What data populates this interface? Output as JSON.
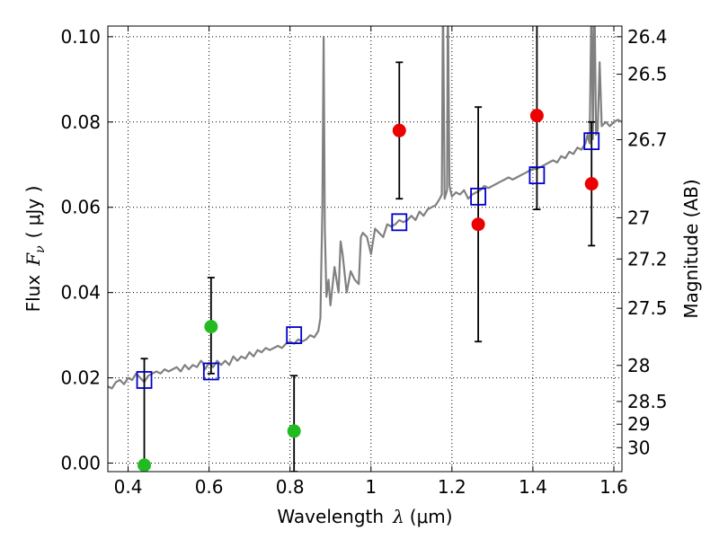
{
  "chart_data": {
    "type": "scatter",
    "xlabel_prefix": "Wavelength",
    "xlabel_symbol": "λ",
    "xlabel_unit": "(μm)",
    "ylabel_prefix": "Flux",
    "ylabel_symbol": "F",
    "ylabel_sub": "ν",
    "ylabel_unit": "( μJy )",
    "y2label": "Magnitude (AB)",
    "xlim": [
      0.35,
      1.62
    ],
    "ylim": [
      -0.002,
      0.1025
    ],
    "grid": true,
    "x_ticks": [
      "0.4",
      "0.6",
      "0.8",
      "1",
      "1.2",
      "1.4",
      "1.6"
    ],
    "y_ticks": [
      "0.00",
      "0.02",
      "0.04",
      "0.06",
      "0.08",
      "0.10"
    ],
    "mag_ticks": [
      "26.4",
      "26.5",
      "26.7",
      "27",
      "27.2",
      "27.5",
      "28",
      "28.5",
      "29",
      "30"
    ],
    "colors": {
      "spectrum": "#808080",
      "model_box": "#0000cc",
      "green": "#22bb22",
      "red": "#ee0000",
      "errorbar": "#000000"
    },
    "series": [
      {
        "type": "line",
        "color_key": "spectrum",
        "points": [
          [
            0.35,
            0.018
          ],
          [
            0.36,
            0.0175
          ],
          [
            0.37,
            0.019
          ],
          [
            0.38,
            0.0195
          ],
          [
            0.39,
            0.0185
          ],
          [
            0.4,
            0.02
          ],
          [
            0.41,
            0.0195
          ],
          [
            0.42,
            0.021
          ],
          [
            0.43,
            0.02
          ],
          [
            0.44,
            0.019
          ],
          [
            0.45,
            0.0205
          ],
          [
            0.46,
            0.021
          ],
          [
            0.47,
            0.0215
          ],
          [
            0.48,
            0.021
          ],
          [
            0.49,
            0.022
          ],
          [
            0.5,
            0.0215
          ],
          [
            0.51,
            0.022
          ],
          [
            0.52,
            0.0225
          ],
          [
            0.53,
            0.0215
          ],
          [
            0.54,
            0.023
          ],
          [
            0.55,
            0.022
          ],
          [
            0.56,
            0.023
          ],
          [
            0.57,
            0.0225
          ],
          [
            0.58,
            0.024
          ],
          [
            0.585,
            0.0235
          ],
          [
            0.59,
            0.022
          ],
          [
            0.6,
            0.0235
          ],
          [
            0.61,
            0.0225
          ],
          [
            0.62,
            0.024
          ],
          [
            0.63,
            0.023
          ],
          [
            0.64,
            0.024
          ],
          [
            0.65,
            0.023
          ],
          [
            0.66,
            0.025
          ],
          [
            0.67,
            0.024
          ],
          [
            0.68,
            0.025
          ],
          [
            0.69,
            0.0245
          ],
          [
            0.7,
            0.026
          ],
          [
            0.71,
            0.025
          ],
          [
            0.72,
            0.0265
          ],
          [
            0.73,
            0.026
          ],
          [
            0.74,
            0.027
          ],
          [
            0.75,
            0.0265
          ],
          [
            0.76,
            0.027
          ],
          [
            0.77,
            0.0275
          ],
          [
            0.78,
            0.027
          ],
          [
            0.79,
            0.028
          ],
          [
            0.8,
            0.0285
          ],
          [
            0.81,
            0.028
          ],
          [
            0.82,
            0.029
          ],
          [
            0.83,
            0.0285
          ],
          [
            0.84,
            0.029
          ],
          [
            0.85,
            0.03
          ],
          [
            0.86,
            0.0295
          ],
          [
            0.87,
            0.031
          ],
          [
            0.875,
            0.034
          ],
          [
            0.88,
            0.06
          ],
          [
            0.883,
            0.1
          ],
          [
            0.886,
            0.055
          ],
          [
            0.89,
            0.039
          ],
          [
            0.895,
            0.043
          ],
          [
            0.9,
            0.037
          ],
          [
            0.91,
            0.046
          ],
          [
            0.92,
            0.04
          ],
          [
            0.925,
            0.052
          ],
          [
            0.93,
            0.049
          ],
          [
            0.94,
            0.04
          ],
          [
            0.95,
            0.045
          ],
          [
            0.96,
            0.043
          ],
          [
            0.97,
            0.042
          ],
          [
            0.975,
            0.053
          ],
          [
            0.98,
            0.054
          ],
          [
            0.99,
            0.053
          ],
          [
            1.0,
            0.049
          ],
          [
            1.01,
            0.055
          ],
          [
            1.02,
            0.054
          ],
          [
            1.03,
            0.053
          ],
          [
            1.04,
            0.056
          ],
          [
            1.05,
            0.0555
          ],
          [
            1.06,
            0.056
          ],
          [
            1.07,
            0.057
          ],
          [
            1.08,
            0.0565
          ],
          [
            1.09,
            0.057
          ],
          [
            1.1,
            0.058
          ],
          [
            1.11,
            0.057
          ],
          [
            1.12,
            0.059
          ],
          [
            1.13,
            0.058
          ],
          [
            1.14,
            0.0595
          ],
          [
            1.15,
            0.06
          ],
          [
            1.16,
            0.0605
          ],
          [
            1.17,
            0.062
          ],
          [
            1.175,
            0.063
          ],
          [
            1.178,
            0.11
          ],
          [
            1.182,
            0.062
          ],
          [
            1.188,
            0.064
          ],
          [
            1.19,
            0.11
          ],
          [
            1.194,
            0.065
          ],
          [
            1.2,
            0.0625
          ],
          [
            1.21,
            0.0635
          ],
          [
            1.22,
            0.063
          ],
          [
            1.23,
            0.064
          ],
          [
            1.24,
            0.062
          ],
          [
            1.25,
            0.063
          ],
          [
            1.26,
            0.0635
          ],
          [
            1.27,
            0.064
          ],
          [
            1.28,
            0.065
          ],
          [
            1.29,
            0.0645
          ],
          [
            1.3,
            0.065
          ],
          [
            1.31,
            0.0655
          ],
          [
            1.32,
            0.066
          ],
          [
            1.33,
            0.0665
          ],
          [
            1.34,
            0.067
          ],
          [
            1.35,
            0.0665
          ],
          [
            1.36,
            0.067
          ],
          [
            1.37,
            0.0675
          ],
          [
            1.38,
            0.068
          ],
          [
            1.39,
            0.0685
          ],
          [
            1.4,
            0.069
          ],
          [
            1.41,
            0.069
          ],
          [
            1.42,
            0.0695
          ],
          [
            1.43,
            0.07
          ],
          [
            1.44,
            0.0705
          ],
          [
            1.45,
            0.071
          ],
          [
            1.46,
            0.0705
          ],
          [
            1.47,
            0.072
          ],
          [
            1.48,
            0.0715
          ],
          [
            1.49,
            0.073
          ],
          [
            1.5,
            0.0725
          ],
          [
            1.51,
            0.074
          ],
          [
            1.52,
            0.0735
          ],
          [
            1.53,
            0.075
          ],
          [
            1.535,
            0.077
          ],
          [
            1.54,
            0.075
          ],
          [
            1.545,
            0.11
          ],
          [
            1.548,
            0.076
          ],
          [
            1.552,
            0.11
          ],
          [
            1.556,
            0.077
          ],
          [
            1.56,
            0.078
          ],
          [
            1.565,
            0.094
          ],
          [
            1.57,
            0.079
          ],
          [
            1.58,
            0.08
          ],
          [
            1.59,
            0.079
          ],
          [
            1.6,
            0.08
          ],
          [
            1.61,
            0.0805
          ],
          [
            1.62,
            0.08
          ]
        ]
      }
    ],
    "model_points": [
      {
        "x": 0.44,
        "y": 0.0195
      },
      {
        "x": 0.605,
        "y": 0.0215
      },
      {
        "x": 0.81,
        "y": 0.03
      },
      {
        "x": 1.07,
        "y": 0.0565
      },
      {
        "x": 1.265,
        "y": 0.0625
      },
      {
        "x": 1.41,
        "y": 0.0675
      },
      {
        "x": 1.545,
        "y": 0.0755
      }
    ],
    "observed_points": [
      {
        "x": 0.44,
        "y": -0.0005,
        "yerr_low": -0.0005,
        "yerr_high": 0.0245,
        "color_key": "green"
      },
      {
        "x": 0.605,
        "y": 0.032,
        "yerr_low": 0.021,
        "yerr_high": 0.0435,
        "color_key": "green"
      },
      {
        "x": 0.81,
        "y": 0.0075,
        "yerr_low": -0.002,
        "yerr_high": 0.0205,
        "color_key": "green"
      },
      {
        "x": 1.07,
        "y": 0.078,
        "yerr_low": 0.062,
        "yerr_high": 0.094,
        "color_key": "red"
      },
      {
        "x": 1.265,
        "y": 0.056,
        "yerr_low": 0.0285,
        "yerr_high": 0.0835,
        "color_key": "red"
      },
      {
        "x": 1.41,
        "y": 0.0815,
        "yerr_low": 0.0595,
        "yerr_high": 0.1045,
        "color_key": "red"
      },
      {
        "x": 1.545,
        "y": 0.0655,
        "yerr_low": 0.051,
        "yerr_high": 0.08,
        "color_key": "red"
      }
    ]
  }
}
